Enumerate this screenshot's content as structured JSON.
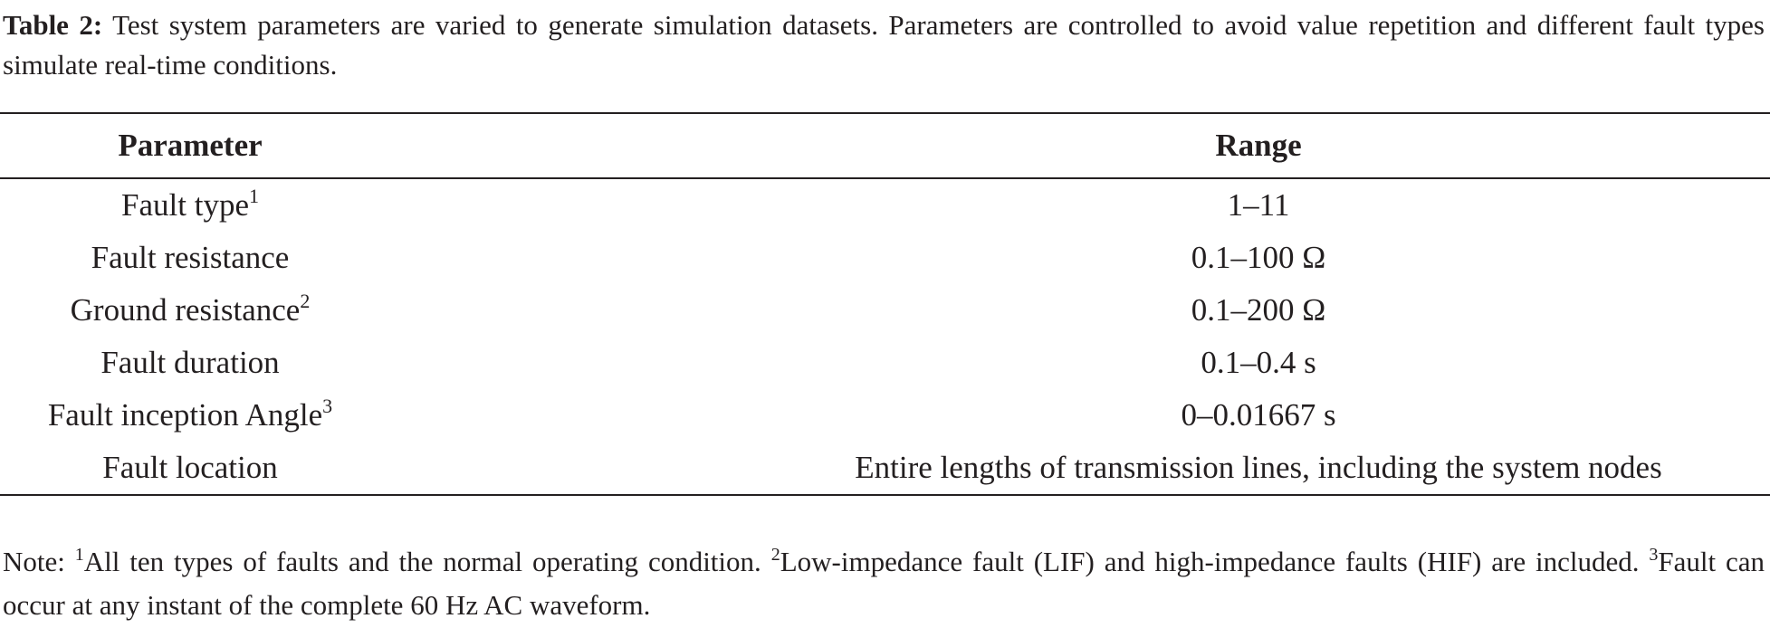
{
  "caption": {
    "label": "Table 2:",
    "text": "Test system parameters are varied to generate simulation datasets. Parameters are controlled to avoid value repetition and different fault types simulate real-time conditions."
  },
  "table": {
    "headers": [
      "Parameter",
      "Range"
    ],
    "rows": [
      {
        "parameter": "Fault type",
        "ref": "1",
        "range": "1–11"
      },
      {
        "parameter": "Fault resistance",
        "range": "0.1–100 Ω"
      },
      {
        "parameter": "Ground resistance",
        "ref": "2",
        "range": "0.1–200 Ω"
      },
      {
        "parameter": "Fault duration",
        "range": "0.1–0.4 s"
      },
      {
        "parameter": "Fault inception Angle",
        "ref": "3",
        "range": "0–0.01667 s"
      },
      {
        "parameter": "Fault location",
        "range": "Entire lengths of transmission lines, including the system nodes"
      }
    ]
  },
  "note": {
    "label": "Note:",
    "items": [
      {
        "ref": "1",
        "text": "All ten types of faults and the normal operating condition."
      },
      {
        "ref": "2",
        "text": "Low-impedance fault (LIF) and high-impedance faults (HIF) are included."
      },
      {
        "ref": "3",
        "text": "Fault can occur at any instant of the complete 60 Hz AC waveform."
      }
    ]
  }
}
